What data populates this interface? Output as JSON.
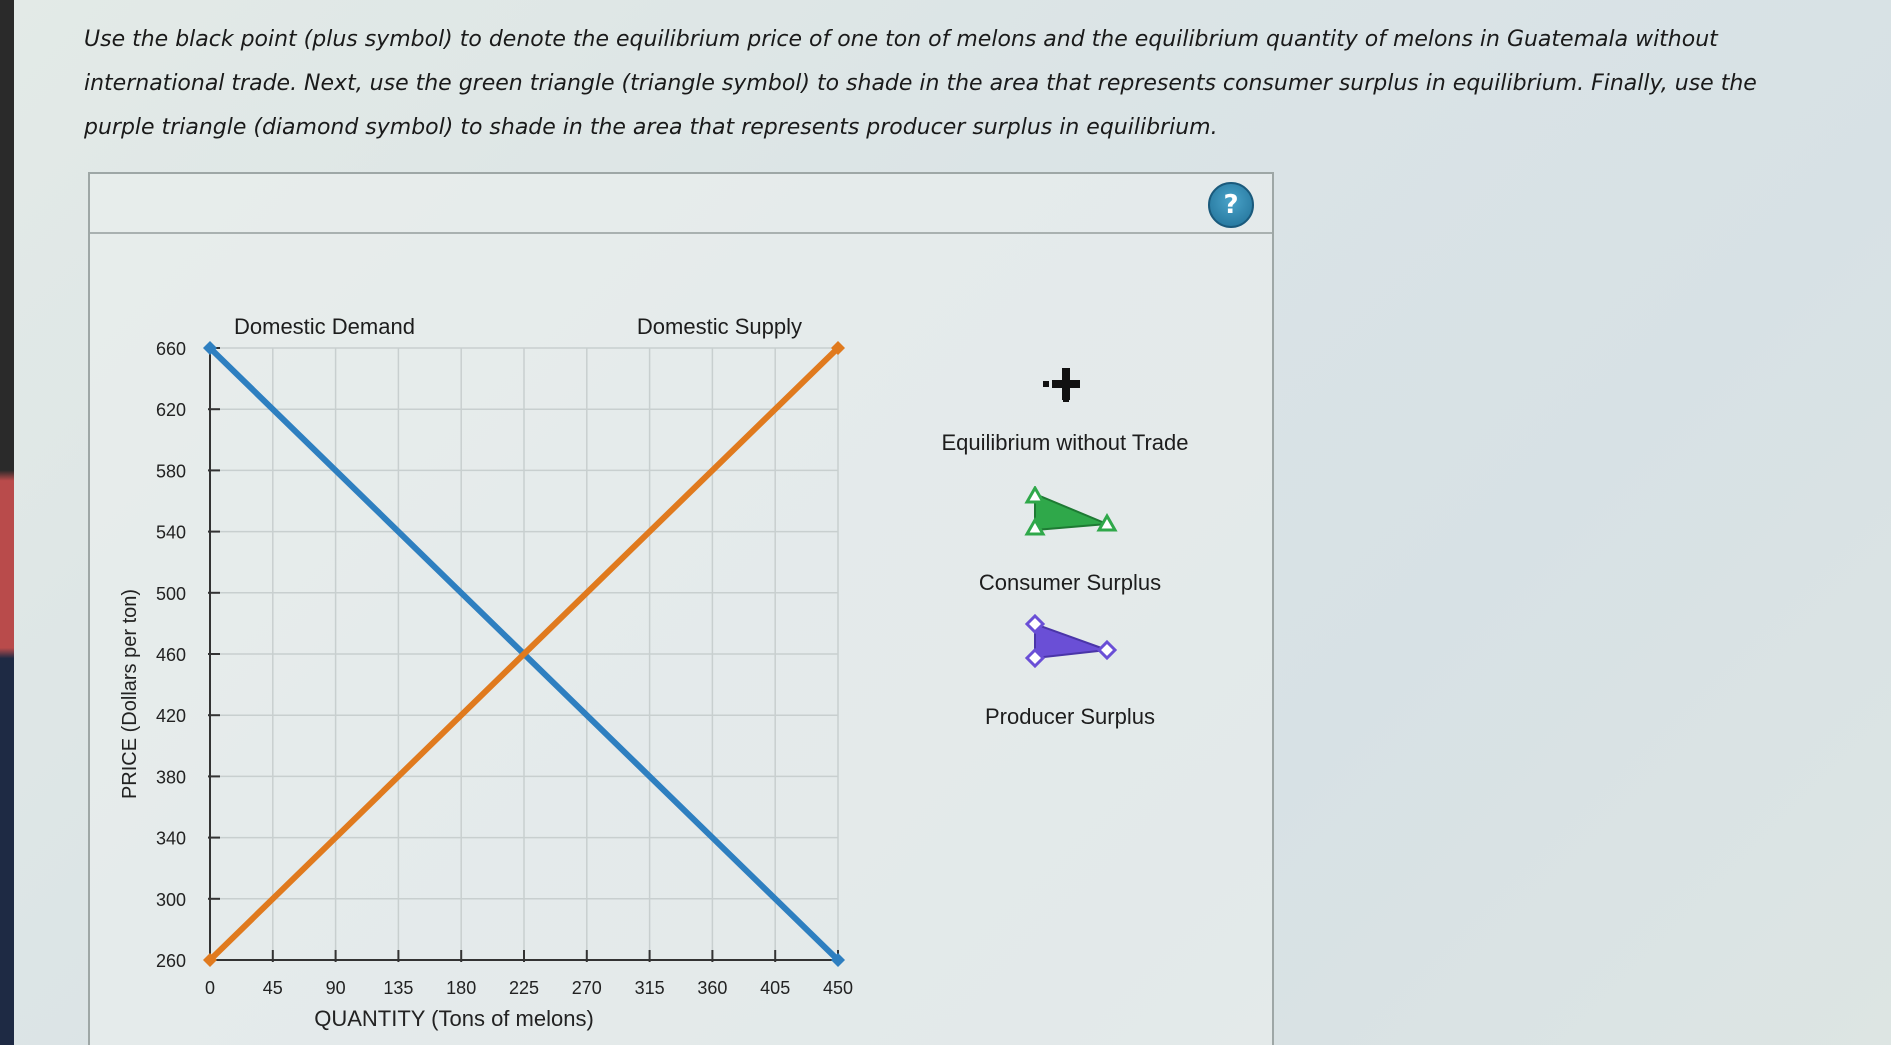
{
  "instructions": "Use the black point (plus symbol) to denote the equilibrium price of one ton of melons and the equilibrium quantity of melons in Guatemala without international trade. Next, use the green triangle (triangle symbol) to shade in the area that represents consumer surplus in equilibrium. Finally, use the purple triangle (diamond symbol) to shade in the area that represents producer surplus in equilibrium.",
  "help_label": "?",
  "tools": [
    {
      "label": "Equilibrium without Trade",
      "icon": "plus-point-icon",
      "color": "#111111"
    },
    {
      "label": "Consumer Surplus",
      "icon": "green-triangle-icon",
      "color": "#2fa84a"
    },
    {
      "label": "Producer Surplus",
      "icon": "purple-diamond-icon",
      "color": "#6a4fd6"
    }
  ],
  "colors": {
    "demand": "#2e7fc0",
    "supply": "#e07a1e",
    "grid": "#c8cfcf"
  },
  "chart_data": {
    "type": "line",
    "xlabel": "QUANTITY (Tons of melons)",
    "ylabel": "PRICE (Dollars per ton)",
    "xlim": [
      0,
      450
    ],
    "ylim": [
      260,
      660
    ],
    "xticks": [
      0,
      45,
      90,
      135,
      180,
      225,
      270,
      315,
      360,
      405,
      450
    ],
    "yticks": [
      260,
      300,
      340,
      380,
      420,
      460,
      500,
      540,
      580,
      620,
      660
    ],
    "grid": true,
    "series": [
      {
        "name": "Domestic Demand",
        "x": [
          0,
          450
        ],
        "y": [
          660,
          260
        ]
      },
      {
        "name": "Domestic Supply",
        "x": [
          0,
          450
        ],
        "y": [
          260,
          660
        ]
      }
    ]
  }
}
